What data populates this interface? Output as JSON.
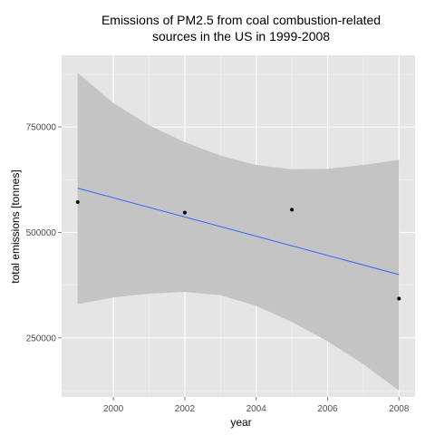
{
  "chart_data": {
    "type": "scatter",
    "title_lines": [
      "Emissions of PM2.5 from coal combustion-related",
      "sources in the US in 1999-2008"
    ],
    "xlabel": "year",
    "ylabel": "total emissions [tonnes]",
    "xlim": [
      1998.55,
      2008.45
    ],
    "ylim": [
      110000,
      920000
    ],
    "x_ticks": [
      2000,
      2002,
      2004,
      2006,
      2008
    ],
    "x_tick_labels": [
      "2000",
      "2002",
      "2004",
      "2006",
      "2008"
    ],
    "y_ticks": [
      250000,
      500000,
      750000
    ],
    "y_tick_labels": [
      "250000",
      "500000",
      "750000"
    ],
    "points": [
      {
        "x": 1999,
        "y": 572000
      },
      {
        "x": 2002,
        "y": 547000
      },
      {
        "x": 2005,
        "y": 554000
      },
      {
        "x": 2008,
        "y": 343000
      }
    ],
    "trend_line": {
      "x": [
        1999,
        2008
      ],
      "y": [
        605000,
        400000
      ]
    },
    "confidence_band": {
      "x": [
        1999,
        2000,
        2001,
        2002,
        2003,
        2004,
        2005,
        2006,
        2007,
        2008
      ],
      "upper": [
        878000,
        807000,
        754000,
        714000,
        682000,
        660000,
        650000,
        651000,
        660000,
        672000
      ],
      "lower": [
        330000,
        346000,
        355000,
        359000,
        351000,
        326000,
        288000,
        242000,
        188000,
        125000
      ]
    },
    "grid": true,
    "legend": "none",
    "colors": {
      "panel_background": "#e5e5e5",
      "grid_major": "#ffffff",
      "grid_minor": "#f2f2f2",
      "band_fill": "#c4c4c4",
      "trend_line": "#3366ff",
      "points": "#000000"
    }
  }
}
